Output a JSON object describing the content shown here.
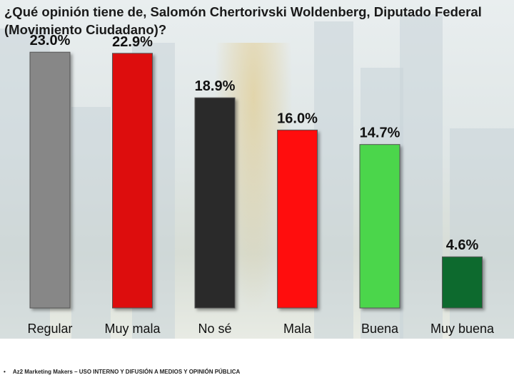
{
  "chart_data": {
    "type": "bar",
    "title": "¿Qué opinión tiene de, Salomón Chertorivski Woldenberg, Diputado Federal (Movimiento Ciudadano)?",
    "categories": [
      "Regular",
      "Muy mala",
      "No sé",
      "Mala",
      "Buena",
      "Muy buena"
    ],
    "values": [
      23.0,
      22.9,
      18.9,
      16.0,
      14.7,
      4.6
    ],
    "value_labels": [
      "23.0%",
      "22.9%",
      "18.9%",
      "16.0%",
      "14.7%",
      "4.6%"
    ],
    "colors": [
      "#878787",
      "#dd0b0b",
      "#2a2a2a",
      "#ff0a0a",
      "#4cd64c",
      "#0e6b2e"
    ],
    "ylim": [
      0,
      25
    ],
    "grid": false,
    "legend": "none"
  },
  "footer": {
    "bullet": "•",
    "text": "Az2 Marketing Makers – USO INTERNO Y DIFUSIÓN A MEDIOS Y OPINIÓN PÚBLICA"
  }
}
